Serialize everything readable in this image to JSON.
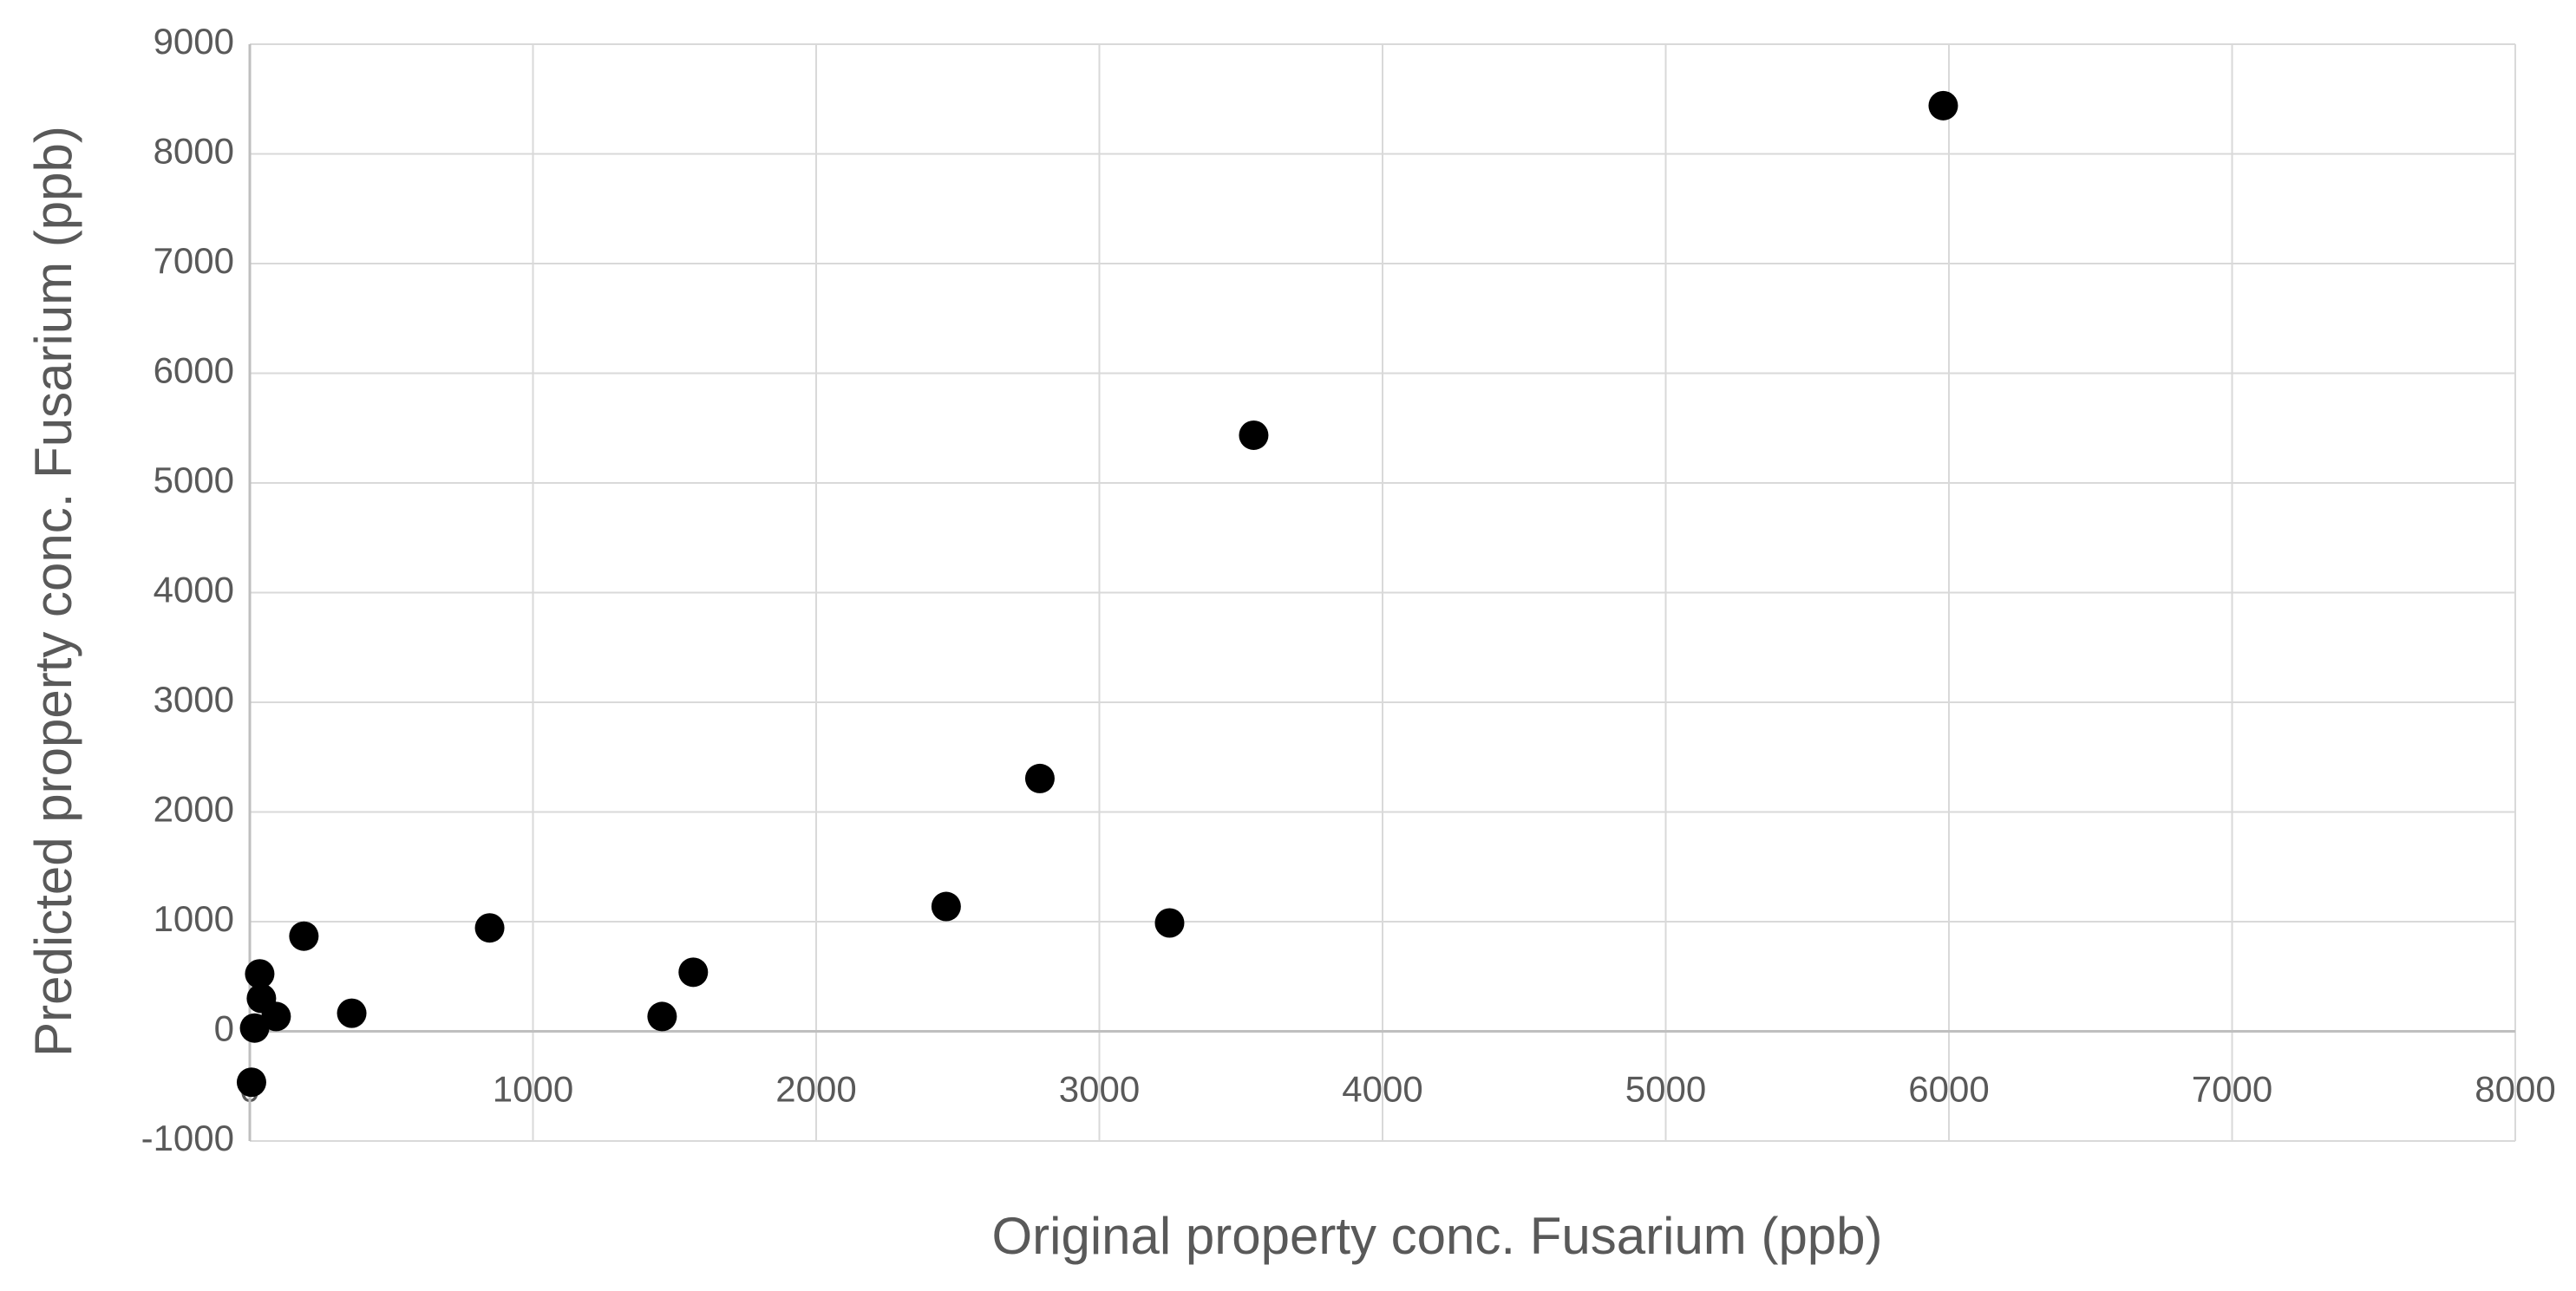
{
  "chart_data": {
    "type": "scatter",
    "x_label": "Original property conc. Fusarium (ppb)",
    "y_label": "Predicted property conc. Fusarium (ppb)",
    "x": [
      5980,
      3545,
      2790,
      2459,
      3248,
      1566,
      1456,
      847,
      191,
      360,
      35,
      41,
      93,
      17,
      6
    ],
    "values": [
      8440,
      5435,
      2305,
      1138,
      988,
      539,
      135,
      943,
      868,
      165,
      524,
      300,
      135,
      30,
      -464
    ],
    "color": "#000000",
    "xlim": [
      0,
      8000
    ],
    "xticks": [
      0,
      1000,
      2000,
      3000,
      4000,
      5000,
      6000,
      7000,
      8000
    ],
    "ylim": [
      -1000,
      9000
    ],
    "yticks": [
      -1000,
      0,
      1000,
      2000,
      3000,
      4000,
      5000,
      6000,
      7000,
      8000,
      9000
    ],
    "grid": true
  }
}
